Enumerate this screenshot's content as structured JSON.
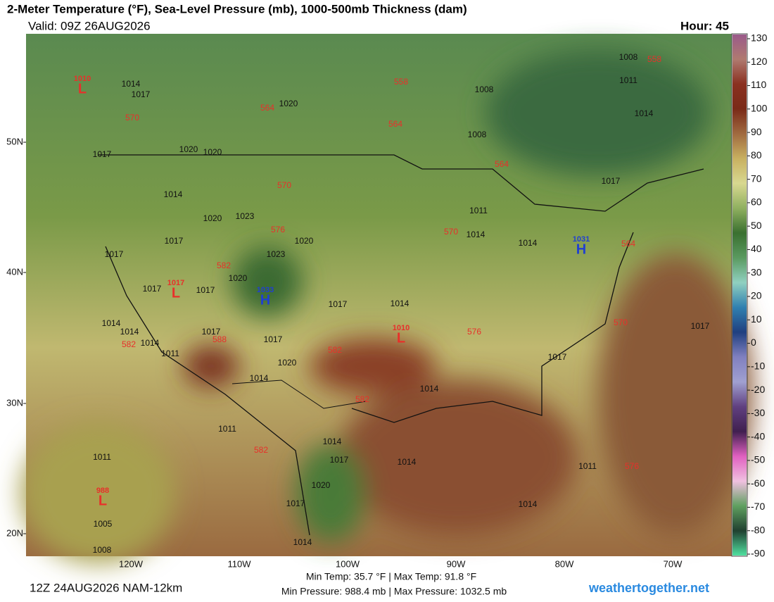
{
  "header": {
    "title": "2-Meter Temperature (°F), Sea-Level Pressure (mb), 1000-500mb Thickness (dam)",
    "valid": "Valid: 09Z 26AUG2026",
    "hour": "Hour: 45"
  },
  "lat_labels": [
    "50N",
    "40N",
    "30N",
    "20N"
  ],
  "lon_labels": [
    "120W",
    "110W",
    "100W",
    "90W",
    "80W",
    "70W"
  ],
  "pressure_labels": [
    "1014",
    "1017",
    "1020",
    "1008",
    "1008",
    "1008",
    "1011",
    "1014",
    "1017",
    "1020",
    "1020",
    "1017",
    "1014",
    "1020",
    "1023",
    "1011",
    "1014",
    "1020",
    "1017",
    "1017",
    "1023",
    "1020",
    "1017",
    "1017",
    "1017",
    "1014",
    "1014",
    "1014",
    "1014",
    "1011",
    "1017",
    "1017",
    "1020",
    "1014",
    "1017",
    "1017",
    "1014",
    "1011",
    "1014",
    "1017",
    "1014",
    "1011",
    "1005",
    "1008",
    "1020",
    "1017",
    "1014",
    "1014",
    "1011",
    "1014"
  ],
  "thickness_labels": [
    "570",
    "564",
    "558",
    "564",
    "564",
    "558",
    "570",
    "576",
    "570",
    "564",
    "582",
    "570",
    "576",
    "582",
    "588",
    "582",
    "582",
    "582",
    "576"
  ],
  "highs_lows": [
    {
      "value": "1010",
      "symbol": "L",
      "color": "#e8302a"
    },
    {
      "value": "1017",
      "symbol": "L",
      "color": "#e8302a"
    },
    {
      "value": "1033",
      "symbol": "H",
      "color": "#2040d0"
    },
    {
      "value": "1010",
      "symbol": "L",
      "color": "#e8302a"
    },
    {
      "value": "1031",
      "symbol": "H",
      "color": "#2040d0"
    },
    {
      "value": "988",
      "symbol": "L",
      "color": "#e8302a"
    }
  ],
  "colorbar": {
    "ticks": [
      130,
      120,
      110,
      100,
      90,
      80,
      70,
      60,
      50,
      40,
      30,
      20,
      10,
      0,
      -10,
      -20,
      -30,
      -40,
      -50,
      -60,
      -70,
      -80,
      -90
    ],
    "colors": [
      "#9a5a8a",
      "#b07a70",
      "#8a3020",
      "#7a2a18",
      "#a06a40",
      "#c8b060",
      "#d8d890",
      "#90b060",
      "#3a7030",
      "#5a9a60",
      "#90d0c0",
      "#3080b0",
      "#204080",
      "#8080c0",
      "#a0a0d0",
      "#604080",
      "#402050",
      "#e060c0",
      "#f0c0e0",
      "#60a060",
      "#204030",
      "#50e0a0"
    ]
  },
  "footer": {
    "run": "12Z 24AUG2026 NAM-12km",
    "temp_line": "Min Temp:  35.7 °F | Max Temp:  91.8 °F",
    "pressure_line": "Min Pressure: 988.4 mb | Max Pressure: 1032.5 mb",
    "site": "weathertogether.net"
  }
}
